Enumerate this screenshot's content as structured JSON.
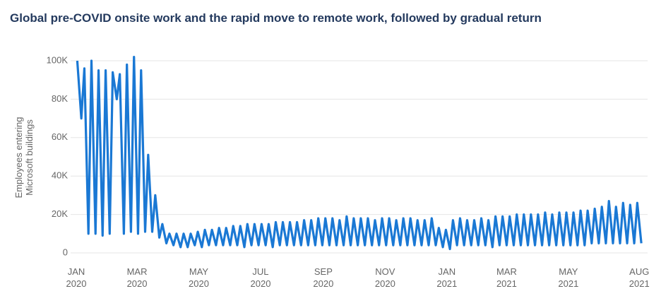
{
  "chart_data": {
    "type": "line",
    "title": "Global pre-COVID onsite work and the rapid move to remote work, followed by gradual return",
    "y_label": "Employees entering Microsoft buildings",
    "color": "#1a78d4",
    "grid": true,
    "x": [
      1,
      5,
      8,
      12,
      15,
      19,
      22,
      26,
      29,
      33,
      36,
      40,
      43,
      47,
      50,
      54,
      57,
      61,
      64,
      68,
      71,
      75,
      78,
      82,
      85,
      89,
      92,
      96,
      99,
      103,
      106,
      110,
      113,
      117,
      120,
      124,
      127,
      131,
      134,
      138,
      141,
      145,
      148,
      152,
      155,
      159,
      162,
      166,
      169,
      173,
      176,
      180,
      183,
      187,
      190,
      194,
      197,
      201,
      204,
      208,
      211,
      215,
      218,
      222,
      225,
      229,
      232,
      236,
      239,
      243,
      246,
      250,
      253,
      257,
      260,
      264,
      267,
      271,
      274,
      278,
      281,
      285,
      288,
      292,
      295,
      299,
      302,
      306,
      309,
      313,
      316,
      320,
      323,
      327,
      330,
      334,
      337,
      341,
      344,
      348,
      351,
      355,
      358,
      362,
      365,
      369,
      372,
      376,
      379,
      383,
      386,
      390,
      393,
      397,
      400,
      404,
      407,
      411,
      414,
      418,
      421,
      425,
      428,
      432,
      435,
      439,
      442,
      446,
      449,
      453,
      456,
      460,
      463,
      467,
      470,
      474,
      477,
      481,
      484,
      488,
      491,
      495,
      498,
      502,
      505,
      509,
      512,
      516,
      519,
      523,
      526,
      530,
      533,
      537,
      540,
      544,
      547,
      551,
      554,
      558
    ],
    "values": [
      100000,
      70000,
      96000,
      10000,
      100000,
      10000,
      95000,
      9000,
      95000,
      10000,
      94000,
      80000,
      93000,
      10000,
      98000,
      11000,
      102000,
      10000,
      95000,
      11000,
      51000,
      11000,
      30000,
      8000,
      15000,
      5000,
      10000,
      4000,
      10000,
      3000,
      10000,
      3000,
      10000,
      4000,
      11000,
      3000,
      12000,
      4000,
      12000,
      4000,
      13000,
      4000,
      13000,
      4000,
      14000,
      4000,
      14000,
      3000,
      15000,
      4000,
      15000,
      4000,
      15000,
      4000,
      15000,
      3000,
      16000,
      4000,
      16000,
      4000,
      16000,
      4000,
      16000,
      4000,
      17000,
      4000,
      17000,
      4000,
      18000,
      4000,
      18000,
      4000,
      18000,
      4000,
      17000,
      4000,
      19000,
      4000,
      18000,
      4000,
      18000,
      4000,
      18000,
      4000,
      17000,
      4000,
      18000,
      4000,
      18000,
      4000,
      17000,
      4000,
      18000,
      4000,
      18000,
      4000,
      17000,
      4000,
      17000,
      4000,
      18000,
      4000,
      13000,
      3000,
      12000,
      2000,
      17000,
      4000,
      18000,
      4000,
      17000,
      4000,
      17000,
      4000,
      18000,
      4000,
      17000,
      3000,
      19000,
      4000,
      19000,
      4000,
      19000,
      4000,
      20000,
      4000,
      20000,
      4000,
      20000,
      4000,
      20000,
      4000,
      21000,
      4000,
      20000,
      4000,
      21000,
      4000,
      21000,
      4000,
      21000,
      4000,
      22000,
      4000,
      22000,
      5000,
      23000,
      5000,
      24000,
      5000,
      27000,
      5000,
      24000,
      5000,
      26000,
      5000,
      25000,
      5000,
      26000,
      5000
    ],
    "xlim": [
      0,
      560
    ],
    "xticks": [
      {
        "value": 0,
        "label": "JAN 2020"
      },
      {
        "value": 60,
        "label": "MAR 2020"
      },
      {
        "value": 121,
        "label": "MAY 2020"
      },
      {
        "value": 182,
        "label": "JUL 2020"
      },
      {
        "value": 244,
        "label": "SEP 2020"
      },
      {
        "value": 305,
        "label": "NOV 2020"
      },
      {
        "value": 366,
        "label": "JAN 2021"
      },
      {
        "value": 425,
        "label": "MAR 2021"
      },
      {
        "value": 486,
        "label": "MAY 2021"
      },
      {
        "value": 556,
        "label": "AUG 2021"
      }
    ],
    "ylim": [
      0,
      100000
    ],
    "yticks": [
      0,
      {
        "value": 20000,
        "label": "20K"
      },
      {
        "value": 40000,
        "label": "40K"
      },
      {
        "value": 60000,
        "label": "60K"
      },
      {
        "value": 80000,
        "label": "80K"
      },
      {
        "value": 100000,
        "label": "100K"
      }
    ]
  }
}
